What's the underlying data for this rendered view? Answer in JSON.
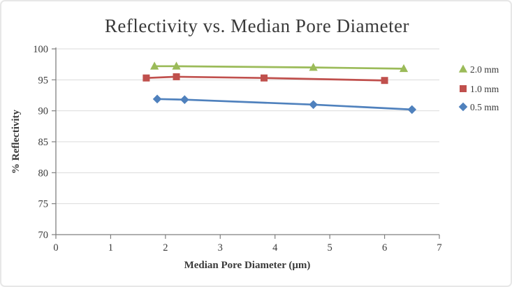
{
  "chart_data": {
    "type": "line",
    "title": "Reflectivity vs. Median Pore Diameter",
    "xlabel": "Median Pore Diameter (μm)",
    "ylabel": "% Reflectivity",
    "xlim": [
      0,
      7
    ],
    "ylim": [
      70,
      100
    ],
    "x_ticks": [
      0,
      1,
      2,
      3,
      4,
      5,
      6,
      7
    ],
    "y_ticks": [
      70,
      75,
      80,
      85,
      90,
      95,
      100
    ],
    "grid": "horizontal-only",
    "legend_position": "right",
    "series": [
      {
        "name": "2.0 mm",
        "marker": "triangle",
        "color": "#9BBB59",
        "points": [
          [
            1.8,
            97.2
          ],
          [
            2.2,
            97.2
          ],
          [
            4.7,
            97.0
          ],
          [
            6.35,
            96.8
          ]
        ]
      },
      {
        "name": "1.0 mm",
        "marker": "square",
        "color": "#C0504D",
        "points": [
          [
            1.65,
            95.3
          ],
          [
            2.2,
            95.5
          ],
          [
            3.8,
            95.3
          ],
          [
            6.0,
            94.9
          ]
        ]
      },
      {
        "name": "0.5 mm",
        "marker": "diamond",
        "color": "#4F81BD",
        "points": [
          [
            1.85,
            91.9
          ],
          [
            2.35,
            91.8
          ],
          [
            4.7,
            91.0
          ],
          [
            6.5,
            90.2
          ]
        ]
      }
    ]
  },
  "colors": {
    "gridline": "#DBDBDB",
    "axis": "#7F7F7F",
    "text": "#3A3A3A",
    "background": "#FFFFFF",
    "card_border": "#E7E7E7"
  }
}
